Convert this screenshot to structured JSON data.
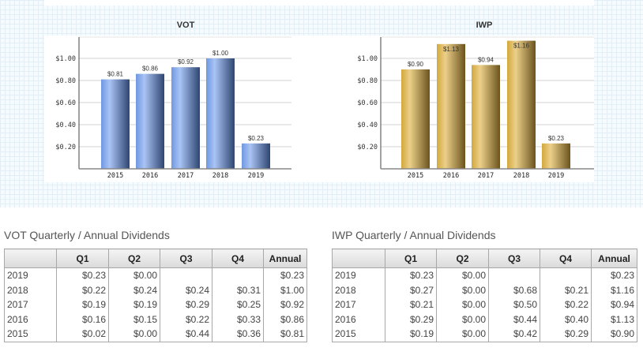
{
  "charts": [
    {
      "id": "vot",
      "title": "VOT",
      "y_ticks": [
        "$0.20",
        "$0.40",
        "$0.60",
        "$0.80",
        "$1.00"
      ],
      "categories": [
        "2015",
        "2016",
        "2017",
        "2018",
        "2019"
      ],
      "values": [
        0.81,
        0.86,
        0.92,
        1.0,
        0.23
      ],
      "value_labels": [
        "$0.81",
        "$0.86",
        "$0.92",
        "$1.00",
        "$0.23"
      ],
      "colors": {
        "light": "#a9c4f5",
        "mid": "#6f97e0",
        "dark": "#2f4570"
      }
    },
    {
      "id": "iwp",
      "title": "IWP",
      "y_ticks": [
        "$0.20",
        "$0.40",
        "$0.60",
        "$0.80",
        "$1.00"
      ],
      "categories": [
        "2015",
        "2016",
        "2017",
        "2018",
        "2019"
      ],
      "values": [
        0.9,
        1.13,
        0.94,
        1.16,
        0.23
      ],
      "value_labels": [
        "$0.90",
        "$1.13",
        "$0.94",
        "$1.16",
        "$0.23"
      ],
      "colors": {
        "light": "#ecd08a",
        "mid": "#d2a83c",
        "dark": "#6b531d"
      }
    }
  ],
  "chart_data": [
    {
      "type": "bar",
      "title": "VOT",
      "categories": [
        "2015",
        "2016",
        "2017",
        "2018",
        "2019"
      ],
      "values": [
        0.81,
        0.86,
        0.92,
        1.0,
        0.23
      ],
      "xlabel": "",
      "ylabel": "",
      "ylim": [
        0,
        1.19
      ],
      "y_tick_values": [
        0.2,
        0.4,
        0.6,
        0.8,
        1.0
      ],
      "grid": true
    },
    {
      "type": "bar",
      "title": "IWP",
      "categories": [
        "2015",
        "2016",
        "2017",
        "2018",
        "2019"
      ],
      "values": [
        0.9,
        1.13,
        0.94,
        1.16,
        0.23
      ],
      "xlabel": "",
      "ylabel": "",
      "ylim": [
        0,
        1.19
      ],
      "y_tick_values": [
        0.2,
        0.4,
        0.6,
        0.8,
        1.0
      ],
      "grid": true
    }
  ],
  "tables": {
    "vot": {
      "title": "VOT Quarterly / Annual Dividends",
      "headers": [
        "",
        "Q1",
        "Q2",
        "Q3",
        "Q4",
        "Annual"
      ],
      "rows": [
        [
          "2019",
          "$0.23",
          "$0.00",
          "",
          "",
          "$0.23"
        ],
        [
          "2018",
          "$0.22",
          "$0.24",
          "$0.24",
          "$0.31",
          "$1.00"
        ],
        [
          "2017",
          "$0.19",
          "$0.19",
          "$0.29",
          "$0.25",
          "$0.92"
        ],
        [
          "2016",
          "$0.16",
          "$0.15",
          "$0.22",
          "$0.33",
          "$0.86"
        ],
        [
          "2015",
          "$0.02",
          "$0.00",
          "$0.44",
          "$0.36",
          "$0.81"
        ]
      ]
    },
    "iwp": {
      "title": "IWP Quarterly / Annual Dividends",
      "headers": [
        "",
        "Q1",
        "Q2",
        "Q3",
        "Q4",
        "Annual"
      ],
      "rows": [
        [
          "2019",
          "$0.23",
          "$0.00",
          "",
          "",
          "$0.23"
        ],
        [
          "2018",
          "$0.27",
          "$0.00",
          "$0.68",
          "$0.21",
          "$1.16"
        ],
        [
          "2017",
          "$0.21",
          "$0.00",
          "$0.50",
          "$0.22",
          "$0.94"
        ],
        [
          "2016",
          "$0.29",
          "$0.00",
          "$0.44",
          "$0.40",
          "$1.13"
        ],
        [
          "2015",
          "$0.19",
          "$0.00",
          "$0.42",
          "$0.29",
          "$0.90"
        ]
      ]
    }
  }
}
